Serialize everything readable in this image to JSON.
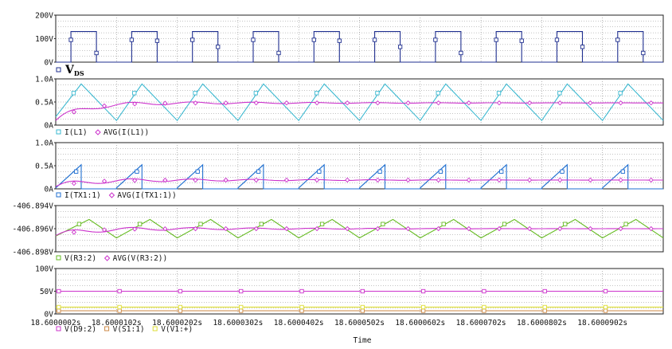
{
  "chart_data": [
    {
      "type": "line",
      "y_ticks": [
        "200V",
        "100V",
        "0V"
      ],
      "ylim": [
        0,
        200
      ],
      "annotation": {
        "main": "V",
        "sub": "DS"
      },
      "series": [
        {
          "color": "#1f2f8f",
          "wave": "square",
          "low": 0,
          "high": 130,
          "period_us": 1.0,
          "duty": 0.42,
          "start_us": 0.25
        }
      ]
    },
    {
      "type": "line",
      "y_ticks": [
        "1.0A",
        "0.5A",
        "0A"
      ],
      "ylim": [
        0,
        1.0
      ],
      "series": [
        {
          "name": "I(L1)",
          "color": "#3bb8d0",
          "wave": "triangle",
          "low": 0.1,
          "high": 0.89,
          "rise": 0.42,
          "period_us": 1.0,
          "start_us": 0.0
        },
        {
          "name": "AVG(I(L1))",
          "color": "#cc33cc",
          "wave": "avg",
          "settle": 0.48,
          "start": 0.1
        }
      ]
    },
    {
      "type": "line",
      "y_ticks": [
        "1.0A",
        "0.5A",
        "0A"
      ],
      "ylim": [
        0,
        1.0
      ],
      "series": [
        {
          "name": "I(TX1:1)",
          "color": "#1f6fd0",
          "wave": "sawtooth",
          "low": 0.0,
          "high": 0.52,
          "rise": 0.42,
          "period_us": 1.0,
          "start_us": 0.0
        },
        {
          "name": "AVG(I(TX1:1))",
          "color": "#cc33cc",
          "wave": "avg",
          "settle": 0.19,
          "start": 0.05
        }
      ]
    },
    {
      "type": "line",
      "y_ticks": [
        "-406.894V",
        "-406.896V",
        "-406.898V"
      ],
      "ylim": [
        -406.898,
        -406.894
      ],
      "series": [
        {
          "name": "V(R3:2)",
          "color": "#66bb22",
          "wave": "triangle",
          "low": -406.8968,
          "high": -406.8952,
          "rise": 0.55,
          "period_us": 1.0,
          "start_us": 0.0
        },
        {
          "name": "AVG(V(R3:2))",
          "color": "#cc33cc",
          "wave": "avg",
          "settle": -406.896,
          "start": -406.8966
        }
      ]
    },
    {
      "type": "line",
      "y_ticks": [
        "100V",
        "50V",
        "0V"
      ],
      "ylim": [
        0,
        100
      ],
      "series": [
        {
          "name": "V(D9:2)",
          "color": "#cc33cc",
          "wave": "flat",
          "value": 50
        },
        {
          "name": "V(S1:1)",
          "color": "#cc8844",
          "wave": "flat",
          "value": 7
        },
        {
          "name": "V(V1:+)",
          "color": "#dddd33",
          "wave": "flat",
          "value": 15
        }
      ]
    }
  ],
  "x_axis": {
    "label": "Time",
    "ticks": [
      "18.6000002s",
      "18.6000102s",
      "18.6000202s",
      "18.6000302s",
      "18.6000402s",
      "18.6000502s",
      "18.6000602s",
      "18.6000702s",
      "18.6000802s",
      "18.6000902s"
    ]
  }
}
